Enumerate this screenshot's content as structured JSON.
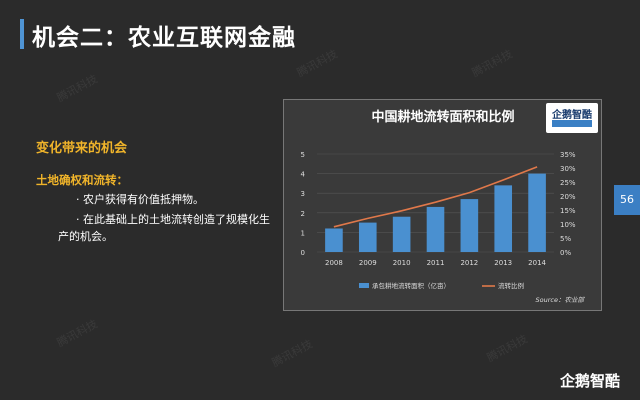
{
  "slide": {
    "title": "机会二：农业互联网金融",
    "section_heading": "变化带来的机会",
    "sub_heading": "土地确权和流转：",
    "bullets": [
      "· 农户获得有价值抵押物。",
      "· 在此基础上的土地流转创造了规模化生",
      "产的机会。"
    ],
    "page_number": "56",
    "brand": "企鹅智酷",
    "watermark": "腾讯科技",
    "accent_color": "#4f94d4",
    "heading_color": "#f0b42a"
  },
  "chart_data": {
    "type": "bar",
    "title": "中国耕地流转面积和比例",
    "categories": [
      "2008",
      "2009",
      "2010",
      "2011",
      "2012",
      "2013",
      "2014"
    ],
    "series": [
      {
        "name": "承包耕地流转面积（亿亩）",
        "type": "bar",
        "axis": "left",
        "color": "#4a90d0",
        "values": [
          1.2,
          1.5,
          1.8,
          2.3,
          2.7,
          3.4,
          4.0
        ]
      },
      {
        "name": "流转比例",
        "type": "line",
        "axis": "right",
        "color": "#e0784a",
        "values": [
          9,
          12,
          14.7,
          17.8,
          21.2,
          25.7,
          30.4
        ]
      }
    ],
    "y_left": {
      "min": 0,
      "max": 5,
      "ticks": [
        "0",
        "1",
        "2",
        "3",
        "4",
        "5"
      ]
    },
    "y_right": {
      "min": 0,
      "max": 35,
      "ticks": [
        "0%",
        "5%",
        "10%",
        "15%",
        "20%",
        "25%",
        "30%",
        "35%"
      ]
    },
    "grid": true,
    "legend_position": "bottom",
    "source": "Source：农业部"
  }
}
